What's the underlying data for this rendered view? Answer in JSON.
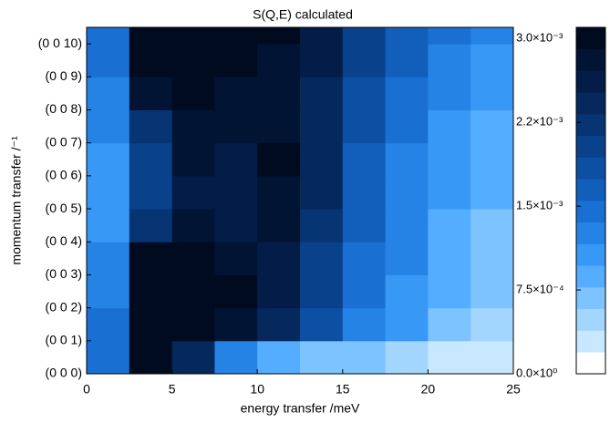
{
  "chart_data": {
    "type": "heatmap",
    "title": "S(Q,E) calculated",
    "x_label": "energy transfer /meV",
    "y_label": "momentum transfer /⁻¹",
    "xlim": [
      0,
      25
    ],
    "xticks": [
      0,
      5,
      10,
      15,
      20,
      25
    ],
    "ylim": [
      0,
      10.5
    ],
    "yticks": [
      {
        "value": 0,
        "label": "(0 0 0)"
      },
      {
        "value": 1,
        "label": "(0 0 1)"
      },
      {
        "value": 2,
        "label": "(0 0 2)"
      },
      {
        "value": 3,
        "label": "(0 0 3)"
      },
      {
        "value": 4,
        "label": "(0 0 4)"
      },
      {
        "value": 5,
        "label": "(0 0 5)"
      },
      {
        "value": 6,
        "label": "(0 0 6)"
      },
      {
        "value": 7,
        "label": "(0 0 7)"
      },
      {
        "value": 8,
        "label": "(0 0 8)"
      },
      {
        "value": 9,
        "label": "(0 0 9)"
      },
      {
        "value": 10,
        "label": "(0 0 10)"
      }
    ],
    "x_edges": [
      0,
      2.5,
      5,
      7.5,
      10,
      12.5,
      15,
      17.5,
      20,
      22.5,
      25
    ],
    "y_edges": [
      0,
      1,
      2,
      3,
      4,
      5,
      6,
      7,
      8,
      9,
      10,
      10.5
    ],
    "z": [
      [
        0.0015,
        0.003,
        0.0025,
        0.0012,
        0.0008,
        0.0007,
        0.0006,
        0.0005,
        0.0003,
        0.0002
      ],
      [
        0.0015,
        0.0033,
        0.0033,
        0.0028,
        0.0024,
        0.0018,
        0.0013,
        0.001,
        0.0007,
        0.0005
      ],
      [
        0.0012,
        0.0033,
        0.0033,
        0.003,
        0.0026,
        0.002,
        0.0014,
        0.0011,
        0.0008,
        0.0006
      ],
      [
        0.0012,
        0.003,
        0.0031,
        0.0029,
        0.0027,
        0.0021,
        0.0015,
        0.0012,
        0.0009,
        0.0006
      ],
      [
        0.001,
        0.0022,
        0.0029,
        0.0027,
        0.0028,
        0.0023,
        0.0016,
        0.0012,
        0.0009,
        0.0007
      ],
      [
        0.001,
        0.002,
        0.0027,
        0.0027,
        0.0028,
        0.0024,
        0.0016,
        0.0013,
        0.001,
        0.0008
      ],
      [
        0.001,
        0.002,
        0.0028,
        0.0027,
        0.003,
        0.0024,
        0.0017,
        0.0013,
        0.0011,
        0.0008
      ],
      [
        0.0012,
        0.0022,
        0.0029,
        0.0028,
        0.0029,
        0.0025,
        0.0018,
        0.0014,
        0.0011,
        0.0009
      ],
      [
        0.0013,
        0.0028,
        0.003,
        0.0028,
        0.0028,
        0.0025,
        0.0019,
        0.0015,
        0.0012,
        0.001
      ],
      [
        0.0015,
        0.0031,
        0.0031,
        0.003,
        0.0029,
        0.0026,
        0.002,
        0.0016,
        0.0013,
        0.0011
      ],
      [
        0.0015,
        0.0033,
        0.0032,
        0.0031,
        0.003,
        0.0027,
        0.0021,
        0.0017,
        0.0014,
        0.0012
      ]
    ],
    "zlim": [
      0,
      0.0031
    ],
    "zticks": [
      {
        "value": 0,
        "label": "0.0×10⁰"
      },
      {
        "value": 0.00075,
        "label": "7.5×10⁻⁴"
      },
      {
        "value": 0.0015,
        "label": "1.5×10⁻³"
      },
      {
        "value": 0.00225,
        "label": "2.2×10⁻³"
      },
      {
        "value": 0.003,
        "label": "3.0×10⁻³"
      }
    ],
    "colors": [
      "#ffffff",
      "#c8e8ff",
      "#a3d6ff",
      "#7cc3ff",
      "#55adff",
      "#3898f5",
      "#2583e6",
      "#1a70d2",
      "#125ebb",
      "#0d4fa3",
      "#09418b",
      "#073473",
      "#05285d",
      "#031d48",
      "#021434",
      "#010b20"
    ]
  }
}
